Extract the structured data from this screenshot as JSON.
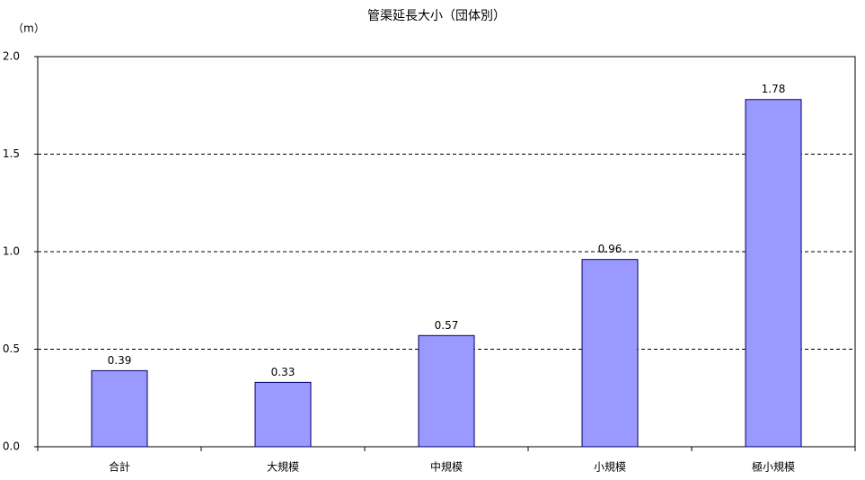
{
  "chart_data": {
    "type": "bar",
    "title": "管渠延長大小（団体別）",
    "y_label": "（m）",
    "categories": [
      "合計",
      "大規模",
      "中規模",
      "小規模",
      "極小規模"
    ],
    "values": [
      0.39,
      0.33,
      0.57,
      0.96,
      1.78
    ],
    "color": "#9999ff",
    "ylim": [
      0,
      2
    ],
    "yticks": [
      {
        "value": 0,
        "label": "0.0"
      },
      0.5,
      {
        "value": 1,
        "label": "1.0"
      },
      1.5,
      {
        "value": 2,
        "label": "2.0"
      }
    ],
    "grid": true
  }
}
